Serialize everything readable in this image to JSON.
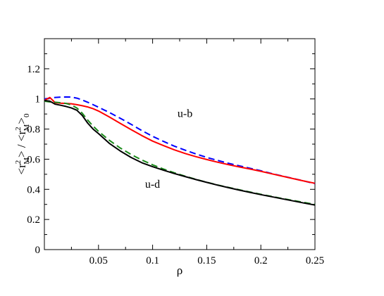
{
  "chart_data": {
    "type": "line",
    "xlabel": "ρ",
    "ylabel": {
      "base": "<r",
      "sup": "2",
      "sub": "M",
      "mid": "> / <r",
      "sup2": "2",
      "sub2": "M",
      "end": ">",
      "sub3": "0"
    },
    "xlim": [
      0,
      0.25
    ],
    "ylim": [
      0,
      1.4
    ],
    "xticks": [
      0.05,
      0.1,
      0.15,
      0.2,
      0.25
    ],
    "xtick_labels": [
      "0.05",
      "0.1",
      "0.15",
      "0.2",
      "0.25"
    ],
    "yticks": [
      0,
      0.2,
      0.4,
      0.6,
      0.8,
      1,
      1.2
    ],
    "ytick_labels": [
      "0",
      "0.2",
      "0.4",
      "0.6",
      "0.8",
      "1",
      "1.2"
    ],
    "grid": false,
    "annotations": [
      {
        "text": "u-b",
        "x": 0.123,
        "y": 0.88
      },
      {
        "text": "u-d",
        "x": 0.093,
        "y": 0.41
      }
    ],
    "series": [
      {
        "color": "#0000ff",
        "dash": "dashed",
        "x": [
          0,
          0.005,
          0.01,
          0.015,
          0.02,
          0.025,
          0.03,
          0.035,
          0.04,
          0.045,
          0.05,
          0.06,
          0.07,
          0.08,
          0.09,
          0.1,
          0.11,
          0.12,
          0.13,
          0.14,
          0.15,
          0.16,
          0.17,
          0.18,
          0.19,
          0.2,
          0.21,
          0.22,
          0.23,
          0.24,
          0.25
        ],
        "y": [
          1.0,
          1.005,
          1.01,
          1.012,
          1.013,
          1.012,
          1.005,
          0.993,
          0.978,
          0.962,
          0.945,
          0.91,
          0.872,
          0.832,
          0.79,
          0.752,
          0.718,
          0.687,
          0.66,
          0.635,
          0.612,
          0.592,
          0.573,
          0.556,
          0.54,
          0.523,
          0.505,
          0.488,
          0.472,
          0.455,
          0.438
        ]
      },
      {
        "color": "#ff0000",
        "dash": "solid",
        "x": [
          0,
          0.005,
          0.01,
          0.015,
          0.02,
          0.025,
          0.03,
          0.035,
          0.04,
          0.045,
          0.05,
          0.06,
          0.07,
          0.08,
          0.09,
          0.1,
          0.11,
          0.12,
          0.13,
          0.14,
          0.15,
          0.16,
          0.17,
          0.18,
          0.19,
          0.2,
          0.21,
          0.22,
          0.23,
          0.24,
          0.25
        ],
        "y": [
          0.99,
          1.01,
          0.975,
          0.972,
          0.97,
          0.968,
          0.962,
          0.955,
          0.947,
          0.935,
          0.92,
          0.88,
          0.838,
          0.797,
          0.757,
          0.72,
          0.69,
          0.662,
          0.638,
          0.617,
          0.598,
          0.58,
          0.564,
          0.549,
          0.535,
          0.52,
          0.503,
          0.487,
          0.471,
          0.455,
          0.44
        ]
      },
      {
        "color": "#1a8a1a",
        "dash": "dashed",
        "x": [
          0,
          0.005,
          0.01,
          0.015,
          0.02,
          0.025,
          0.03,
          0.035,
          0.04,
          0.045,
          0.05,
          0.06,
          0.07,
          0.08,
          0.09,
          0.1,
          0.11,
          0.12,
          0.13,
          0.14,
          0.15,
          0.16,
          0.17,
          0.18,
          0.19,
          0.2,
          0.21,
          0.22,
          0.23,
          0.24,
          0.25
        ],
        "y": [
          0.985,
          0.98,
          0.978,
          0.975,
          0.97,
          0.96,
          0.94,
          0.905,
          0.86,
          0.82,
          0.785,
          0.725,
          0.675,
          0.632,
          0.595,
          0.563,
          0.535,
          0.51,
          0.487,
          0.466,
          0.447,
          0.429,
          0.413,
          0.397,
          0.382,
          0.367,
          0.353,
          0.339,
          0.326,
          0.313,
          0.3
        ]
      },
      {
        "color": "#000000",
        "dash": "solid",
        "x": [
          0,
          0.005,
          0.01,
          0.015,
          0.02,
          0.025,
          0.03,
          0.035,
          0.04,
          0.045,
          0.05,
          0.06,
          0.07,
          0.08,
          0.09,
          0.1,
          0.11,
          0.12,
          0.13,
          0.14,
          0.15,
          0.16,
          0.17,
          0.18,
          0.19,
          0.2,
          0.21,
          0.22,
          0.23,
          0.24,
          0.25
        ],
        "y": [
          0.99,
          0.985,
          0.965,
          0.958,
          0.95,
          0.94,
          0.925,
          0.89,
          0.84,
          0.8,
          0.77,
          0.705,
          0.655,
          0.612,
          0.577,
          0.55,
          0.527,
          0.505,
          0.485,
          0.465,
          0.446,
          0.428,
          0.411,
          0.395,
          0.38,
          0.365,
          0.351,
          0.337,
          0.323,
          0.309,
          0.296
        ]
      }
    ]
  }
}
